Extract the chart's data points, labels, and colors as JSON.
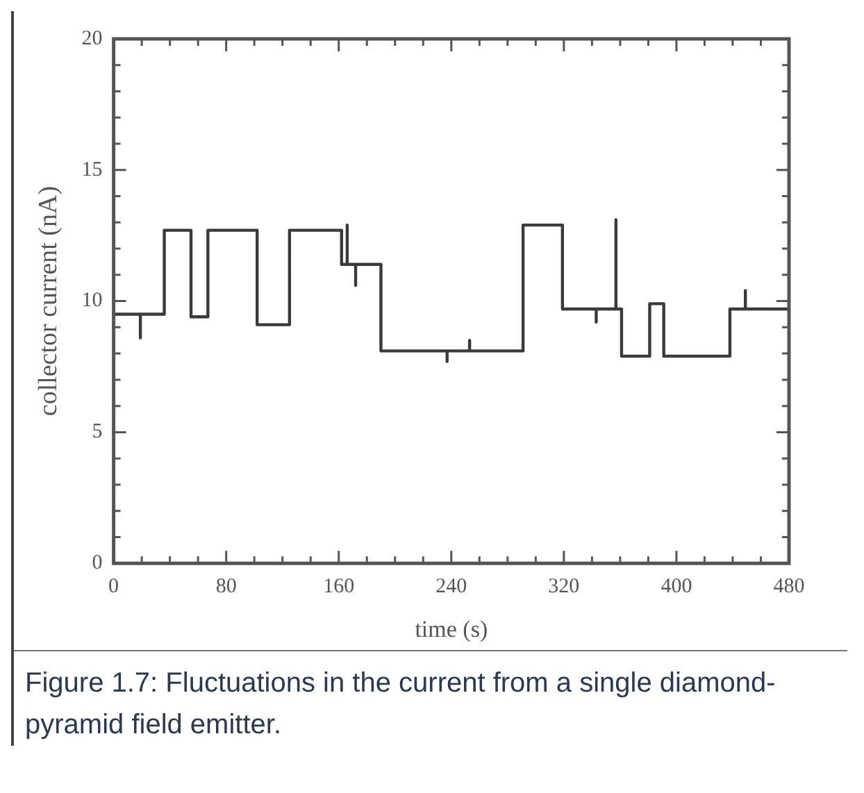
{
  "chart_data": {
    "type": "line",
    "xlabel": "time (s)",
    "ylabel": "collector current (nA)",
    "annotations": [
      "Figure 1.7: Fluctuations in the current from a single diamond-pyramid field emitter."
    ],
    "series": [
      {
        "color": "#3a3a3a",
        "x": [
          0,
          19,
          19,
          19,
          36,
          36,
          55,
          55,
          67,
          67,
          102,
          102,
          125,
          125,
          162,
          162,
          166,
          166,
          166,
          172,
          172,
          172,
          190,
          190,
          237,
          237,
          237,
          253,
          253,
          253,
          291,
          291,
          319,
          319,
          343,
          343,
          343,
          357,
          357,
          357,
          361,
          361,
          381,
          381,
          391,
          391,
          438,
          438,
          449,
          449,
          449,
          480
        ],
        "values": [
          9.5,
          9.5,
          8.6,
          9.5,
          9.5,
          12.7,
          12.7,
          9.4,
          9.4,
          12.7,
          12.7,
          9.1,
          9.1,
          12.7,
          12.7,
          11.4,
          11.4,
          12.9,
          11.4,
          11.4,
          10.6,
          11.4,
          11.4,
          8.1,
          8.1,
          7.7,
          8.1,
          8.1,
          8.5,
          8.1,
          8.1,
          12.9,
          12.9,
          9.7,
          9.7,
          9.2,
          9.7,
          9.7,
          13.1,
          9.7,
          9.7,
          7.9,
          7.9,
          9.9,
          9.9,
          7.9,
          7.9,
          9.7,
          9.7,
          10.4,
          9.7,
          9.7
        ]
      }
    ],
    "xlim": [
      0,
      480
    ],
    "ylim": [
      0,
      20
    ],
    "xticks": [
      0,
      {
        "value": 20,
        "label": null
      },
      {
        "value": 40,
        "label": null
      },
      {
        "value": 60,
        "label": null
      },
      80,
      {
        "value": 100,
        "label": null
      },
      {
        "value": 120,
        "label": null
      },
      {
        "value": 140,
        "label": null
      },
      160,
      {
        "value": 180,
        "label": null
      },
      {
        "value": 200,
        "label": null
      },
      {
        "value": 220,
        "label": null
      },
      240,
      {
        "value": 260,
        "label": null
      },
      {
        "value": 280,
        "label": null
      },
      {
        "value": 300,
        "label": null
      },
      320,
      {
        "value": 340,
        "label": null
      },
      {
        "value": 360,
        "label": null
      },
      {
        "value": 380,
        "label": null
      },
      400,
      {
        "value": 420,
        "label": null
      },
      {
        "value": 440,
        "label": null
      },
      {
        "value": 460,
        "label": null
      },
      480
    ],
    "yticks": [
      0,
      {
        "value": 1,
        "label": null
      },
      {
        "value": 2,
        "label": null
      },
      {
        "value": 3,
        "label": null
      },
      {
        "value": 4,
        "label": null
      },
      5,
      {
        "value": 6,
        "label": null
      },
      {
        "value": 7,
        "label": null
      },
      {
        "value": 8,
        "label": null
      },
      {
        "value": 9,
        "label": null
      },
      10,
      {
        "value": 11,
        "label": null
      },
      {
        "value": 12,
        "label": null
      },
      {
        "value": 13,
        "label": null
      },
      {
        "value": 14,
        "label": null
      },
      15,
      {
        "value": 16,
        "label": null
      },
      {
        "value": 17,
        "label": null
      },
      {
        "value": 18,
        "label": null
      },
      {
        "value": 19,
        "label": null
      },
      20
    ],
    "grid": false,
    "legend": false,
    "marker": "none",
    "line_style": "solid"
  }
}
